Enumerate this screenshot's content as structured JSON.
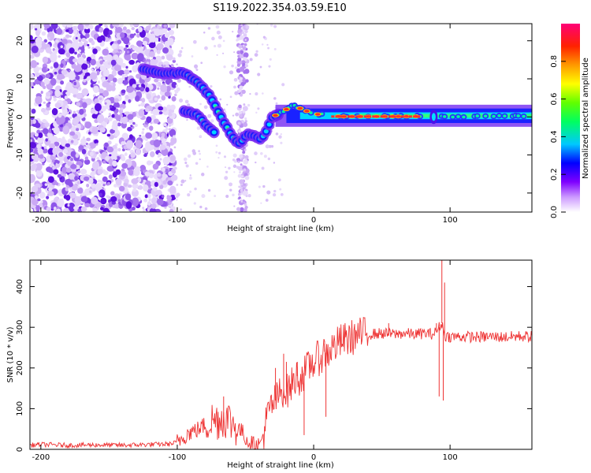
{
  "title": "S119.2022.354.03.59.E10",
  "chart_data": [
    {
      "type": "heatmap",
      "title": "S119.2022.354.03.59.E10",
      "xlabel": "Height of straight line (km)",
      "ylabel": "Frequency (Hz)",
      "xlim": [
        -208,
        160
      ],
      "ylim": [
        -25,
        24.5
      ],
      "xticks": [
        -200,
        -100,
        0,
        100
      ],
      "yticks": [
        -20,
        -10,
        0,
        10,
        20
      ],
      "colorbar": {
        "label": "Normalized spectral amplitude",
        "range": [
          0.0,
          1.0
        ],
        "ticks": [
          0.0,
          0.2,
          0.4,
          0.6,
          0.8
        ],
        "tick_labels": [
          "0.0",
          "0.2",
          "0.4",
          "0.6",
          "0.8"
        ],
        "colors": [
          "#ffffff",
          "#7f00ff",
          "#0000ff",
          "#00c8ff",
          "#00ff40",
          "#ffff00",
          "#ff8000",
          "#ff0000",
          "#ff0080"
        ]
      },
      "features": {
        "noise_region": [
          -208,
          -102
        ],
        "noise_stripe_x": -52,
        "upper_branch": [
          [
            -125,
            12.5
          ],
          [
            -110,
            11.5
          ],
          [
            -95,
            11.5
          ],
          [
            -85,
            9
          ],
          [
            -75,
            5
          ],
          [
            -68,
            0
          ],
          [
            -60,
            -5
          ],
          [
            -55,
            -7
          ],
          [
            -48,
            -4.5
          ],
          [
            -38,
            -6
          ],
          [
            -30,
            0
          ],
          [
            -15,
            3
          ],
          [
            0,
            0.8
          ],
          [
            20,
            0.1
          ],
          [
            160,
            0.2
          ]
        ],
        "lower_branch": [
          [
            -95,
            1.5
          ],
          [
            -85,
            0.5
          ],
          [
            -78,
            -2.5
          ],
          [
            -72,
            -4.5
          ]
        ]
      }
    },
    {
      "type": "line",
      "xlabel": "Height of straight line (km)",
      "ylabel": "SNR (10 * v/v)",
      "xlim": [
        -208,
        160
      ],
      "ylim": [
        0,
        465
      ],
      "xticks": [
        -200,
        -100,
        0,
        100
      ],
      "yticks": [
        0,
        100,
        200,
        300,
        400
      ],
      "color": "#ee3333",
      "series": [
        {
          "x": [
            -208,
            -200,
            -180,
            -160,
            -140,
            -120,
            -105,
            -100,
            -96,
            -92,
            -88,
            -84,
            -80,
            -76,
            -72,
            -68,
            -64,
            -60,
            -56,
            -52,
            -48,
            -44,
            -42,
            -40,
            -38,
            -36,
            -34,
            -32,
            -30,
            -28,
            -26,
            -24,
            -22,
            -20,
            -18,
            -16,
            -14,
            -12,
            -10,
            -8,
            -6,
            -4,
            -2,
            0,
            2,
            4,
            6,
            8,
            10,
            12,
            14,
            16,
            18,
            20,
            24,
            28,
            32,
            36,
            40,
            45,
            50,
            55,
            60,
            65,
            70,
            75,
            80,
            85,
            88,
            90,
            92,
            94,
            96,
            98,
            100,
            110,
            120,
            130,
            140,
            150,
            160
          ],
          "y": [
            10,
            12,
            10,
            11,
            10,
            12,
            13,
            18,
            30,
            40,
            45,
            50,
            60,
            70,
            72,
            75,
            78,
            65,
            55,
            40,
            20,
            10,
            8,
            12,
            25,
            50,
            80,
            100,
            110,
            120,
            130,
            140,
            150,
            140,
            150,
            160,
            170,
            180,
            175,
            185,
            190,
            200,
            210,
            215,
            220,
            225,
            230,
            240,
            235,
            245,
            250,
            255,
            260,
            265,
            270,
            275,
            280,
            282,
            283,
            284,
            285,
            284,
            283,
            285,
            284,
            283,
            285,
            284,
            284,
            290,
            300,
            310,
            280,
            278,
            277,
            277,
            276,
            277,
            276,
            278,
            277
          ],
          "spikes": [
            [
              -66,
              130
            ],
            [
              -28,
              200
            ],
            [
              -22,
              235
            ],
            [
              -20,
              215
            ],
            [
              -12,
              215
            ],
            [
              -8,
              160
            ],
            [
              -7,
              35
            ],
            [
              8,
              260
            ],
            [
              9,
              80
            ],
            [
              55,
              310
            ],
            [
              90,
              310
            ],
            [
              92,
              130
            ],
            [
              94,
              465
            ],
            [
              95,
              120
            ],
            [
              96,
              410
            ]
          ]
        }
      ]
    }
  ]
}
